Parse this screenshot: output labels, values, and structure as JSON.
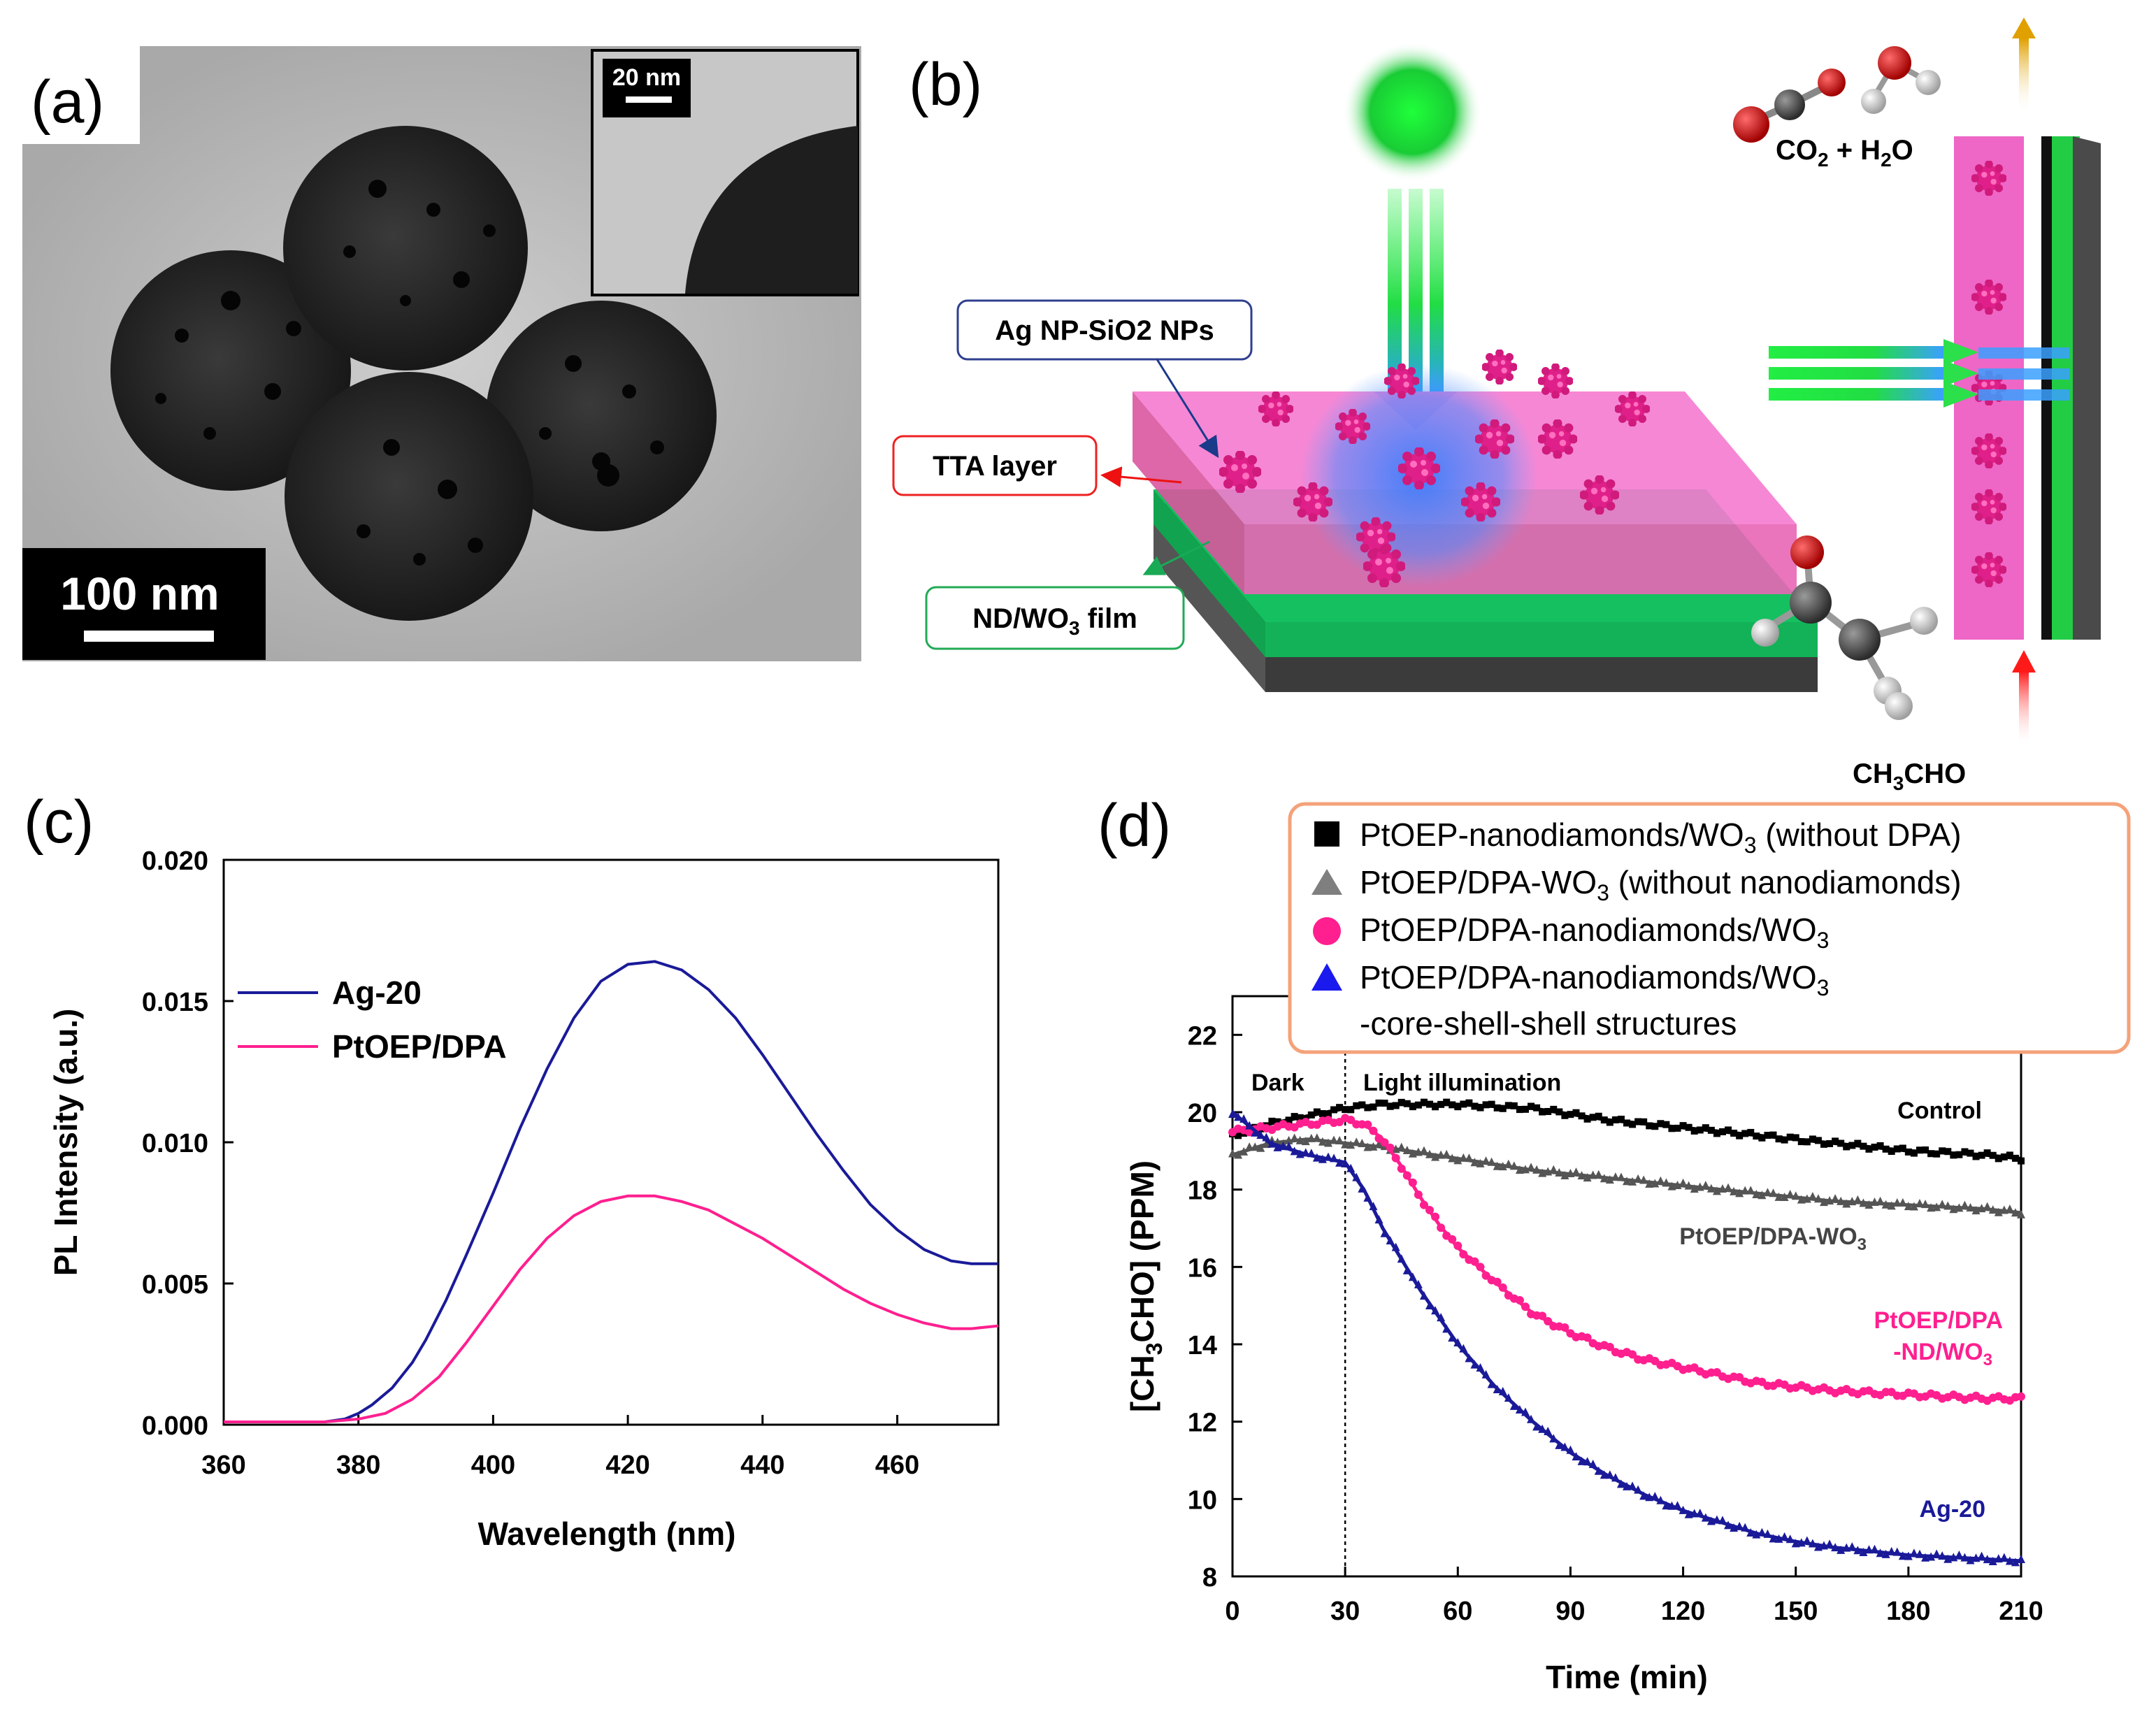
{
  "panels": {
    "a": {
      "label": "(a)",
      "scale_main": "100 nm",
      "scale_inset": "20 nm"
    },
    "b": {
      "label": "(b)",
      "callouts": {
        "ag_np": "Ag NP-SiO2 NPs",
        "tta": "TTA layer",
        "film": "ND/WO3 film"
      },
      "products": "CO2 + H2O",
      "reactant": "CH3CHO"
    },
    "c": {
      "label": "(c)"
    },
    "d": {
      "label": "(d)",
      "legend": [
        {
          "text": "PtOEP-nanodiamonds/WO3 (without DPA)",
          "marker": "square",
          "color": "#000000"
        },
        {
          "text": "PtOEP/DPA-WO3 (without nanodiamonds)",
          "marker": "triangle",
          "color": "#7f7f7f"
        },
        {
          "text": "PtOEP/DPA-nanodiamonds/WO3",
          "marker": "circle",
          "color": "#ff1f8f"
        },
        {
          "text": "PtOEP/DPA-nanodiamonds/WO3",
          "marker": "triangle",
          "color": "#1a1aee"
        },
        {
          "text": "-core-shell-shell structures",
          "marker": "none",
          "color": "#000000"
        }
      ],
      "annotations": {
        "dark": "Dark",
        "light": "Light illumination",
        "control": "Control",
        "ptoep_wo3": "PtOEP/DPA-WO3",
        "ptoep_nd_1": "PtOEP/DPA",
        "ptoep_nd_2": "-ND/WO3",
        "ag20": "Ag-20"
      }
    }
  },
  "chart_data": [
    {
      "type": "line",
      "panel": "c",
      "xlabel": "Wavelength (nm)",
      "ylabel": "PL Intensity (a.u.)",
      "xlim": [
        360,
        475
      ],
      "ylim": [
        0.0,
        0.02
      ],
      "xticks": [
        "360",
        "380",
        "400",
        "420",
        "440",
        "460"
      ],
      "yticks": [
        "0.000",
        "0.005",
        "0.010",
        "0.015",
        "0.020"
      ],
      "legend_position": "top-left",
      "series": [
        {
          "name": "Ag-20",
          "color": "#1a1a99",
          "x": [
            360,
            370,
            375,
            378,
            380,
            382,
            385,
            388,
            390,
            393,
            396,
            400,
            404,
            408,
            412,
            416,
            420,
            424,
            428,
            432,
            436,
            440,
            444,
            448,
            452,
            456,
            460,
            464,
            468,
            471,
            475
          ],
          "y": [
            0.0001,
            0.0001,
            0.0001,
            0.0002,
            0.0004,
            0.0007,
            0.0013,
            0.0022,
            0.003,
            0.0044,
            0.006,
            0.0082,
            0.0105,
            0.0126,
            0.0144,
            0.0157,
            0.0163,
            0.0164,
            0.0161,
            0.0154,
            0.0144,
            0.0131,
            0.0117,
            0.0103,
            0.009,
            0.0078,
            0.0069,
            0.0062,
            0.0058,
            0.0057,
            0.0057
          ]
        },
        {
          "name": "PtOEP/DPA",
          "color": "#ff1f8f",
          "x": [
            360,
            370,
            375,
            380,
            384,
            388,
            392,
            396,
            400,
            404,
            408,
            412,
            416,
            420,
            424,
            428,
            432,
            436,
            440,
            444,
            448,
            452,
            456,
            460,
            464,
            468,
            471,
            475
          ],
          "y": [
            0.0001,
            0.0001,
            0.0001,
            0.0002,
            0.0004,
            0.0009,
            0.0017,
            0.0029,
            0.0042,
            0.0055,
            0.0066,
            0.0074,
            0.0079,
            0.0081,
            0.0081,
            0.0079,
            0.0076,
            0.0071,
            0.0066,
            0.006,
            0.0054,
            0.0048,
            0.0043,
            0.0039,
            0.0036,
            0.0034,
            0.0034,
            0.0035
          ]
        }
      ]
    },
    {
      "type": "scatter",
      "panel": "d",
      "xlabel": "Time (min)",
      "ylabel": "[CH3CHO] (PPM)",
      "xlim": [
        0,
        210
      ],
      "ylim": [
        8,
        23
      ],
      "xticks": [
        "0",
        "30",
        "60",
        "90",
        "120",
        "150",
        "180",
        "210"
      ],
      "yticks": [
        "8",
        "10",
        "12",
        "14",
        "16",
        "18",
        "20",
        "22"
      ],
      "vline_x": 30,
      "series": [
        {
          "name": "Control",
          "color": "#000000",
          "marker": "square",
          "x": [
            0,
            10,
            20,
            30,
            40,
            60,
            80,
            100,
            120,
            140,
            160,
            180,
            200,
            210
          ],
          "y": [
            19.4,
            19.7,
            19.9,
            20.1,
            20.2,
            20.2,
            20.1,
            19.8,
            19.6,
            19.4,
            19.2,
            19.0,
            18.9,
            18.8
          ]
        },
        {
          "name": "PtOEP/DPA-WO3",
          "color": "#555555",
          "marker": "triangle",
          "x": [
            0,
            10,
            20,
            30,
            40,
            60,
            80,
            100,
            120,
            140,
            160,
            180,
            200,
            210
          ],
          "y": [
            18.9,
            19.2,
            19.3,
            19.2,
            19.1,
            18.8,
            18.5,
            18.3,
            18.1,
            17.9,
            17.7,
            17.6,
            17.5,
            17.4
          ]
        },
        {
          "name": "PtOEP/DPA-ND/WO3",
          "color": "#ff1f8f",
          "marker": "circle",
          "x": [
            0,
            10,
            20,
            30,
            35,
            40,
            45,
            50,
            55,
            60,
            70,
            80,
            90,
            100,
            110,
            120,
            130,
            140,
            150,
            160,
            170,
            180,
            190,
            200,
            210
          ],
          "y": [
            19.5,
            19.6,
            19.7,
            19.8,
            19.7,
            19.3,
            18.6,
            17.8,
            17.1,
            16.5,
            15.6,
            14.8,
            14.3,
            13.9,
            13.6,
            13.4,
            13.2,
            13.0,
            12.9,
            12.8,
            12.75,
            12.7,
            12.65,
            12.6,
            12.6
          ]
        },
        {
          "name": "Ag-20",
          "color": "#1a1a99",
          "marker": "triangle",
          "x": [
            0,
            10,
            20,
            30,
            35,
            40,
            45,
            50,
            60,
            70,
            80,
            90,
            100,
            110,
            120,
            130,
            140,
            150,
            160,
            170,
            180,
            190,
            200,
            210
          ],
          "y": [
            20.0,
            19.2,
            18.9,
            18.7,
            18.0,
            17.0,
            16.2,
            15.4,
            14.0,
            12.9,
            12.0,
            11.2,
            10.6,
            10.1,
            9.7,
            9.4,
            9.1,
            8.9,
            8.75,
            8.65,
            8.55,
            8.5,
            8.45,
            8.4
          ]
        }
      ]
    }
  ]
}
